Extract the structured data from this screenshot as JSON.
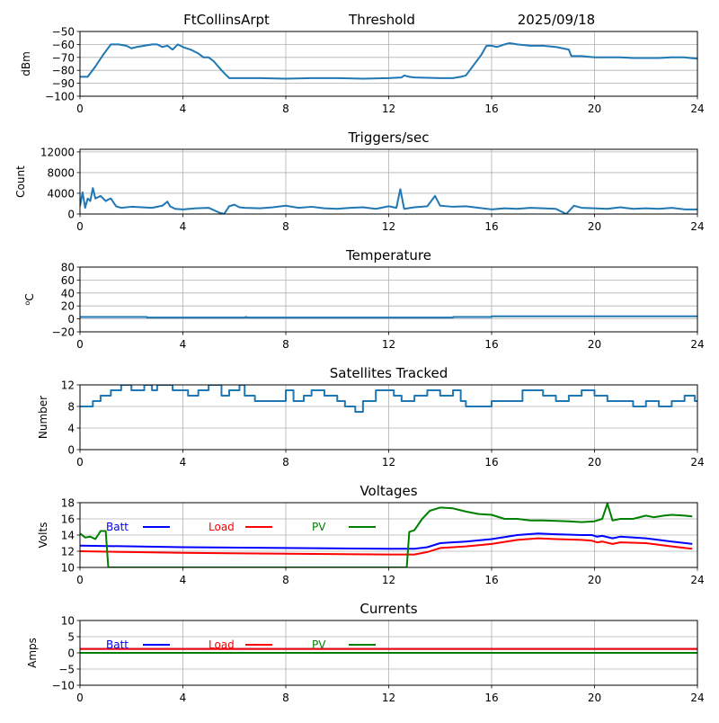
{
  "header": {
    "station": "FtCollinsArpt",
    "mode": "Threshold",
    "date": "2025/09/18"
  },
  "chart_data": [
    {
      "type": "line",
      "title": "",
      "ylabel": "dBm",
      "xlabel": "",
      "xlim": [
        0,
        24
      ],
      "ylim": [
        -100,
        -50
      ],
      "xticks": [
        "0",
        "4",
        "8",
        "12",
        "16",
        "20",
        "24"
      ],
      "yticks": [
        "-100",
        "-90",
        "-80",
        "-70",
        "-60",
        "-50"
      ],
      "grid": true,
      "series": [
        {
          "name": "Threshold",
          "color": "#1f77b4",
          "x": [
            0,
            0.3,
            0.6,
            0.9,
            1.2,
            1.5,
            1.8,
            2.0,
            2.2,
            2.5,
            2.8,
            3.0,
            3.2,
            3.4,
            3.6,
            3.8,
            4.0,
            4.3,
            4.6,
            4.8,
            5.0,
            5.2,
            5.5,
            5.8,
            6.5,
            7,
            8,
            9,
            10,
            11,
            12,
            12.5,
            12.6,
            12.8,
            13,
            14,
            14.5,
            14.8,
            15,
            15.3,
            15.6,
            15.8,
            16,
            16.2,
            16.5,
            16.7,
            17,
            17.5,
            18,
            18.5,
            19,
            19.1,
            19.5,
            20,
            20.5,
            21,
            21.5,
            22,
            22.5,
            23,
            23.5,
            24
          ],
          "y": [
            -85,
            -85,
            -77,
            -68,
            -60,
            -60,
            -61,
            -63,
            -62,
            -61,
            -60,
            -60,
            -62,
            -61,
            -64,
            -60,
            -62,
            -64,
            -67,
            -70,
            -70,
            -73,
            -80,
            -86,
            -86,
            -86,
            -86.5,
            -86,
            -86,
            -86.5,
            -86,
            -85.5,
            -84,
            -85,
            -85.5,
            -86,
            -86,
            -85,
            -84,
            -76,
            -68,
            -61,
            -61,
            -62,
            -60,
            -59,
            -60,
            -61,
            -61,
            -62,
            -64,
            -69,
            -69,
            -70,
            -70,
            -70,
            -70.5,
            -70.5,
            -70.5,
            -70,
            -70,
            -71
          ]
        }
      ]
    },
    {
      "type": "line",
      "title": "Triggers/sec",
      "ylabel": "Count",
      "xlabel": "",
      "xlim": [
        0,
        24
      ],
      "ylim": [
        0,
        12500
      ],
      "xticks": [
        "0",
        "4",
        "8",
        "12",
        "16",
        "20",
        "24"
      ],
      "yticks": [
        "0",
        "4000",
        "8000",
        "12000"
      ],
      "grid": true,
      "series": [
        {
          "name": "Triggers",
          "color": "#1f77b4",
          "x": [
            0,
            0.1,
            0.2,
            0.3,
            0.4,
            0.5,
            0.6,
            0.8,
            1.0,
            1.1,
            1.2,
            1.4,
            1.6,
            2.0,
            2.4,
            2.8,
            3.2,
            3.4,
            3.5,
            3.7,
            4.0,
            4.5,
            5.0,
            5.4,
            5.6,
            5.8,
            6.0,
            6.2,
            6.4,
            7.0,
            7.5,
            8.0,
            8.5,
            9.0,
            9.5,
            10.0,
            10.5,
            11.0,
            11.5,
            12.0,
            12.3,
            12.45,
            12.6,
            13.0,
            13.5,
            13.8,
            14.0,
            14.5,
            15.0,
            15.5,
            16.0,
            16.5,
            17.0,
            17.5,
            18.0,
            18.5,
            18.9,
            19.2,
            19.5,
            20.0,
            20.5,
            21.0,
            21.5,
            22.0,
            22.5,
            23.0,
            23.5,
            24.0
          ],
          "y": [
            1500,
            4200,
            1200,
            3000,
            2500,
            5000,
            3000,
            3500,
            2500,
            2800,
            3000,
            1500,
            1200,
            1400,
            1300,
            1200,
            1600,
            2400,
            1500,
            1000,
            900,
            1100,
            1200,
            300,
            0,
            1500,
            1800,
            1300,
            1200,
            1100,
            1300,
            1600,
            1200,
            1400,
            1100,
            1000,
            1200,
            1300,
            1000,
            1500,
            1200,
            4800,
            1000,
            1300,
            1500,
            3500,
            1600,
            1400,
            1500,
            1200,
            900,
            1100,
            1000,
            1200,
            1100,
            1000,
            0,
            1600,
            1200,
            1100,
            1000,
            1300,
            1000,
            1100,
            1000,
            1200,
            900,
            900
          ]
        }
      ]
    },
    {
      "type": "line",
      "title": "Temperature",
      "ylabel": "°C",
      "ylabel_prefix": "o",
      "ylabel_suffix": "C",
      "xlabel": "",
      "xlim": [
        0,
        24
      ],
      "ylim": [
        -20,
        80
      ],
      "xticks": [
        "0",
        "4",
        "8",
        "12",
        "16",
        "20",
        "24"
      ],
      "yticks": [
        "-20",
        "0",
        "20",
        "40",
        "60",
        "80"
      ],
      "grid": true,
      "series": [
        {
          "name": "Temperature",
          "color": "#1f77b4",
          "x": [
            0,
            2.6,
            2.6,
            6.4,
            6.45,
            6.5,
            14.5,
            14.5,
            16.0,
            16.0,
            24
          ],
          "y": [
            3,
            3,
            2,
            2,
            3,
            2,
            2,
            3,
            3,
            4,
            4
          ]
        }
      ]
    },
    {
      "type": "line",
      "title": "Satellites Tracked",
      "ylabel": "Number",
      "xlabel": "",
      "xlim": [
        0,
        24
      ],
      "ylim": [
        0,
        12
      ],
      "xticks": [
        "0",
        "4",
        "8",
        "12",
        "16",
        "20",
        "24"
      ],
      "yticks": [
        "0",
        "4",
        "8",
        "12"
      ],
      "grid": true,
      "series": [
        {
          "name": "Satellites",
          "color": "#1f77b4",
          "step": true,
          "x": [
            0,
            0.5,
            0.8,
            1.2,
            1.6,
            2.0,
            2.5,
            2.8,
            3.0,
            3.6,
            4.2,
            4.6,
            5.0,
            5.5,
            5.8,
            6.2,
            6.4,
            6.8,
            7.5,
            8.0,
            8.3,
            8.7,
            9.0,
            9.5,
            10.0,
            10.3,
            10.7,
            11.0,
            11.5,
            11.8,
            12.2,
            12.5,
            13.0,
            13.5,
            14.0,
            14.5,
            14.8,
            15.0,
            15.5,
            16.0,
            16.5,
            17.0,
            17.2,
            17.5,
            18.0,
            18.5,
            19.0,
            19.5,
            20.0,
            20.3,
            20.5,
            21.0,
            21.5,
            22.0,
            22.5,
            23.0,
            23.5,
            23.9
          ],
          "y": [
            8,
            9,
            10,
            11,
            12,
            11,
            12,
            11,
            12,
            11,
            10,
            11,
            12,
            10,
            11,
            12,
            10,
            9,
            9,
            11,
            9,
            10,
            11,
            10,
            9,
            8,
            7,
            9,
            11,
            11,
            10,
            9,
            10,
            11,
            10,
            11,
            9,
            8,
            8,
            9,
            9,
            9,
            11,
            11,
            10,
            9,
            10,
            11,
            10,
            10,
            9,
            9,
            8,
            9,
            8,
            9,
            10,
            9
          ]
        }
      ]
    },
    {
      "type": "line",
      "title": "Voltages",
      "ylabel": "Volts",
      "xlabel": "",
      "xlim": [
        0,
        24
      ],
      "ylim": [
        10,
        18
      ],
      "xticks": [
        "0",
        "4",
        "8",
        "12",
        "16",
        "20",
        "24"
      ],
      "yticks": [
        "10",
        "12",
        "14",
        "16",
        "18"
      ],
      "grid": true,
      "legend": {
        "position": "top-left-inline",
        "entries": [
          {
            "label": "Batt",
            "color": "#0000ff"
          },
          {
            "label": "Load",
            "color": "#ff0000"
          },
          {
            "label": "PV",
            "color": "#008000"
          }
        ]
      },
      "series": [
        {
          "name": "Batt",
          "color": "#0000ff",
          "x": [
            0,
            4,
            8,
            12,
            13.0,
            13.5,
            14.0,
            15,
            16,
            17,
            17.8,
            18.5,
            19.5,
            19.9,
            20.1,
            20.3,
            20.7,
            21,
            22,
            23,
            23.8
          ],
          "y": [
            12.7,
            12.5,
            12.4,
            12.3,
            12.3,
            12.5,
            13.0,
            13.2,
            13.5,
            14.0,
            14.2,
            14.1,
            14.0,
            14.0,
            13.8,
            13.9,
            13.6,
            13.8,
            13.6,
            13.2,
            12.9
          ]
        },
        {
          "name": "Load",
          "color": "#ff0000",
          "x": [
            0,
            4,
            8,
            12,
            13.0,
            13.5,
            14.0,
            15,
            16,
            17,
            17.8,
            18.5,
            19.5,
            19.9,
            20.1,
            20.3,
            20.7,
            21,
            22,
            23,
            23.8
          ],
          "y": [
            12.0,
            11.8,
            11.7,
            11.6,
            11.6,
            11.9,
            12.4,
            12.6,
            12.9,
            13.4,
            13.6,
            13.5,
            13.4,
            13.3,
            13.1,
            13.2,
            12.9,
            13.1,
            13.0,
            12.6,
            12.3
          ]
        },
        {
          "name": "PV",
          "color": "#008000",
          "x": [
            0,
            0.2,
            0.4,
            0.6,
            0.8,
            1.0,
            1.1,
            1.15,
            12.7,
            12.8,
            13.0,
            13.3,
            13.6,
            14.0,
            14.5,
            15.0,
            15.5,
            16.0,
            16.5,
            17,
            17.5,
            18,
            19,
            19.5,
            20.0,
            20.3,
            20.5,
            20.7,
            21,
            21.5,
            22,
            22.3,
            22.7,
            23,
            23.5,
            23.8
          ],
          "y": [
            14.2,
            13.7,
            13.8,
            13.5,
            14.5,
            14.5,
            10.0,
            10.0,
            10.0,
            14.4,
            14.6,
            16.0,
            17.0,
            17.4,
            17.3,
            16.9,
            16.6,
            16.5,
            16.0,
            16.0,
            15.8,
            15.8,
            15.7,
            15.6,
            15.7,
            16.0,
            17.9,
            15.8,
            16.0,
            16.0,
            16.4,
            16.2,
            16.4,
            16.5,
            16.4,
            16.3
          ]
        }
      ]
    },
    {
      "type": "line",
      "title": "Currents",
      "ylabel": "Amps",
      "xlabel": "",
      "xlim": [
        0,
        24
      ],
      "ylim": [
        -10,
        10
      ],
      "xticks": [
        "0",
        "4",
        "8",
        "12",
        "16",
        "20",
        "24"
      ],
      "yticks": [
        "-10",
        "-5",
        "0",
        "5",
        "10"
      ],
      "grid": true,
      "legend": {
        "position": "top-left-inline",
        "entries": [
          {
            "label": "Batt",
            "color": "#0000ff"
          },
          {
            "label": "Load",
            "color": "#ff0000"
          },
          {
            "label": "PV",
            "color": "#008000"
          }
        ]
      },
      "series": [
        {
          "name": "Batt",
          "color": "#0000ff",
          "x": [
            0,
            24
          ],
          "y": [
            1.2,
            1.2
          ]
        },
        {
          "name": "Load",
          "color": "#ff0000",
          "x": [
            0,
            24
          ],
          "y": [
            1.2,
            1.2
          ]
        },
        {
          "name": "PV",
          "color": "#008000",
          "x": [
            0,
            24
          ],
          "y": [
            0,
            0
          ]
        }
      ]
    }
  ]
}
